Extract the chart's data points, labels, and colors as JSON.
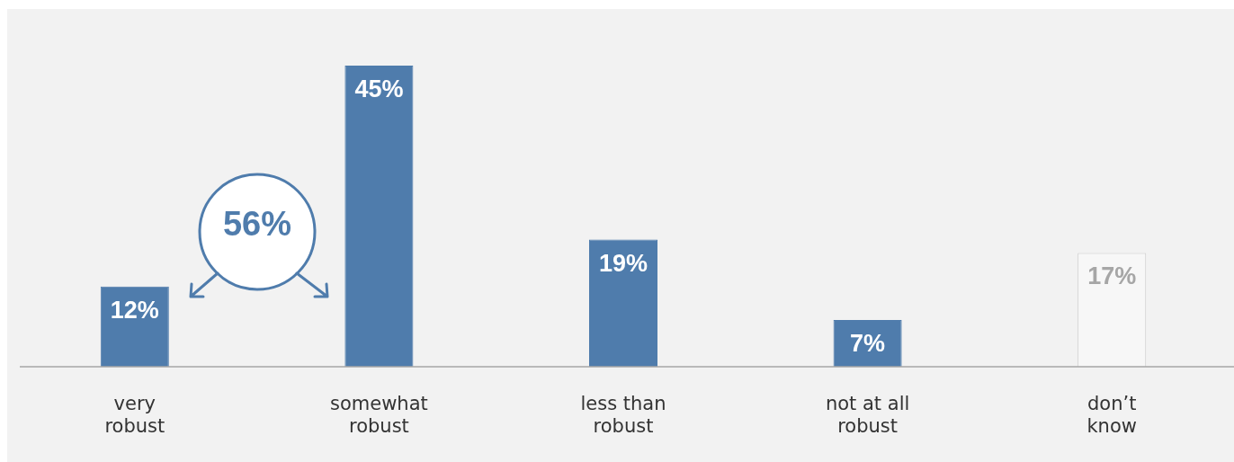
{
  "chart_data": {
    "type": "bar",
    "categories": [
      "very robust",
      "somewhat robust",
      "less than robust",
      "not at all robust",
      "don’t know"
    ],
    "values": [
      12,
      45,
      19,
      7,
      17
    ],
    "colors": [
      "#4f7cac",
      "#4f7cac",
      "#4f7cac",
      "#4f7cac",
      "#f7f7f7"
    ],
    "value_labels": [
      "12%",
      "45%",
      "19%",
      "7%",
      "17%"
    ],
    "legend": false,
    "grid": false,
    "tick_labels": "x",
    "annotations": [
      "56%"
    ]
  }
}
